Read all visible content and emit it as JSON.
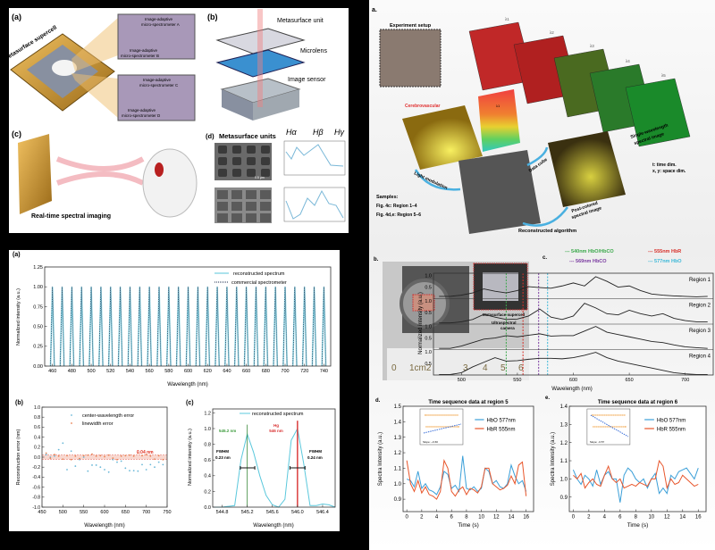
{
  "colors": {
    "cyan": "#5bc8dc",
    "orange": "#e8552a",
    "red": "#d8302a",
    "green": "#3aa84a",
    "purple": "#7a3aa0",
    "blue": "#3b9fd8"
  },
  "fig1": {
    "label_a": "(a)",
    "supercell": "Metasurface supercell",
    "insets": [
      "Image-adaptive",
      "micro-spectrometer A",
      "Image-adaptive",
      "micro-spectrometer B",
      "Image-adaptive",
      "micro-spectrometer C",
      "Image-adaptive",
      "micro-spectrometer D"
    ],
    "label_b": "(b)",
    "layer_unit": "Metasurface unit",
    "layer_lens": "Microlens",
    "layer_sensor": "Image sensor",
    "label_c": "(c)",
    "caption_c": "Real-time spectral imaging",
    "label_d": "(d)",
    "title_d": "Metasurface units",
    "h_labels": [
      "Hα",
      "Hβ",
      "Hγ"
    ],
    "scale": "0.5 μm"
  },
  "fig2": {
    "label_a": "(a)",
    "label_b": "(b)",
    "label_c": "(c)",
    "chart_data": [
      {
        "type": "line",
        "ylabel": "Normalized intensity (a.u.)",
        "xlabel": "Wavelength (nm)",
        "xlim": [
          452,
          747
        ],
        "ylim": [
          0,
          1.25
        ],
        "xticks": [
          460,
          480,
          500,
          520,
          540,
          560,
          580,
          600,
          620,
          640,
          660,
          680,
          700,
          720,
          740
        ],
        "yticks": [
          "0.00",
          "0.25",
          "0.50",
          "0.75",
          "1.00",
          "1.25"
        ],
        "legend": "top-right",
        "series": [
          {
            "name": "reconstructed spectrum",
            "style": "solid"
          },
          {
            "name": "commercial spectrometer",
            "style": "dotted"
          }
        ],
        "peak_centers": [
          460,
          470,
          480,
          490,
          500,
          510,
          520,
          530,
          540,
          550,
          560,
          570,
          580,
          590,
          600,
          610,
          620,
          630,
          640,
          650,
          660,
          670,
          680,
          690,
          700,
          710,
          720,
          730,
          740
        ],
        "peak_height": 1.0
      },
      {
        "type": "scatter",
        "ylabel": "Reconstruction error (nm)",
        "xlabel": "Wavelength (nm)",
        "xlim": [
          450,
          750
        ],
        "ylim": [
          -1,
          1
        ],
        "xticks": [
          450,
          500,
          550,
          600,
          650,
          700,
          750
        ],
        "yticks": [
          "-1.0",
          "-0.8",
          "-0.6",
          "-0.4",
          "-0.2",
          "0.0",
          "0.2",
          "0.4",
          "0.6",
          "0.8",
          "1.0"
        ],
        "x": [
          460,
          470,
          480,
          490,
          500,
          510,
          520,
          530,
          540,
          550,
          560,
          570,
          580,
          590,
          600,
          610,
          620,
          630,
          640,
          650,
          660,
          670,
          680,
          690,
          700,
          710,
          720,
          730,
          740
        ],
        "series": [
          {
            "name": "center-wavelength error",
            "values": [
              0.05,
              0,
              0.02,
              0.15,
              0.28,
              -0.25,
              0.12,
              -0.18,
              -0.05,
              0,
              -0.28,
              -0.16,
              -0.16,
              -0.2,
              -0.25,
              -0.3,
              -0.05,
              -0.1,
              -0.08,
              -0.22,
              -0.27,
              -0.27,
              -0.28,
              -0.15,
              -0.25,
              -0.15,
              -0.2,
              -0.1,
              -0.15
            ]
          },
          {
            "name": "linewidth error",
            "values": [
              0.08,
              -0.02,
              0.05,
              0.02,
              -0.04,
              0.03,
              -0.05,
              0.02,
              -0.03,
              0.03,
              0.04,
              0.06,
              0.02,
              0.03,
              0.01,
              0.04,
              -0.02,
              -0.05,
              0.02,
              0.03,
              0.04,
              0.02,
              0.08,
              0.03,
              0.05,
              0.02,
              -0.04,
              0.03,
              -0.05
            ]
          }
        ],
        "annotation": "0.04 nm",
        "band": 0.04
      },
      {
        "type": "line",
        "ylabel": "Normalized intensity (a.u.)",
        "xlabel": "Wavelength (nm)",
        "xlim": [
          544.65,
          546.6
        ],
        "ylim": [
          0,
          1.25
        ],
        "xticks": [
          "544.8",
          "545.2",
          "545.6",
          "546.0",
          "546.4"
        ],
        "yticks": [
          "0.0",
          "0.2",
          "0.4",
          "0.6",
          "0.8",
          "1.0",
          "1.2"
        ],
        "series": [
          {
            "name": "reconstructed spectrum",
            "x": [
              544.6,
              544.7,
              544.8,
              544.9,
              545.0,
              545.1,
              545.2,
              545.3,
              545.4,
              545.5,
              545.6,
              545.7,
              545.8,
              545.9,
              546.0,
              546.1,
              546.2,
              546.3,
              546.4,
              546.5,
              546.6
            ],
            "values": [
              0,
              0,
              0,
              0.01,
              0.02,
              0.6,
              0.93,
              0.7,
              0.4,
              0.15,
              0.03,
              0,
              0.1,
              0.85,
              1.0,
              0.55,
              0.02,
              0.02,
              0.04,
              0.03,
              0
            ]
          }
        ],
        "annotations": {
          "peak1": "545.2 nm",
          "hg": "Hg",
          "hg_value": "546 nm",
          "fwhm": "FWHM",
          "fwhm1": "0.23 nm",
          "fwhm2": "0.24 nm"
        }
      }
    ]
  },
  "fig3": {
    "label_a": "a.",
    "setup": "Experiment setup",
    "cerebro": "Cerebrovascular",
    "lambdas": [
      "λ1",
      "λ2",
      "λ3",
      "λ4",
      "λ5"
    ],
    "single": "Single-wavelength",
    "single2": "spectral image",
    "light_mod": "Light modulation",
    "data_cube": "Data cube",
    "post": "Post-colored",
    "post2": "spectral image",
    "recon": "Reconstructed algorithm",
    "t_dim": "t: time dim.",
    "xy_dim": "x, y: space dim.",
    "samples": "Samples:",
    "samples_1": "Fig. 4c: Region 1–4",
    "samples_2": "Fig. 4d,e: Region 5–6",
    "label_b": "b.",
    "supercell": "Metasurface supercell",
    "camera": "Ultraspectral",
    "camera2": "camera",
    "ruler": [
      "0",
      "1cm2",
      "3",
      "4",
      "5",
      "6"
    ],
    "label_c": "c.",
    "label_d": "d.",
    "label_e": "e.",
    "chart_data": [
      {
        "type": "line",
        "ylabel": "Normalized intensity (a.u.)",
        "xlabel": "Wavelength (nm)",
        "xlim": [
          475,
          725
        ],
        "xticks": [
          500,
          550,
          600,
          650,
          700
        ],
        "yticks": [
          "0.5",
          "1.0"
        ],
        "markers": [
          {
            "label": "540nm HbO/HbCO",
            "x": 540,
            "color": "#3aa84a"
          },
          {
            "label": "555nm HbR",
            "x": 555,
            "color": "#d8302a"
          },
          {
            "label": "569nm HbCO",
            "x": 569,
            "color": "#7a3aa0"
          },
          {
            "label": "577nm HbO",
            "x": 577,
            "color": "#3bb8d8"
          }
        ],
        "x": [
          480,
          490,
          500,
          510,
          520,
          530,
          540,
          550,
          560,
          570,
          580,
          590,
          600,
          610,
          620,
          630,
          640,
          650,
          660,
          670,
          680,
          690,
          700,
          710,
          720
        ],
        "series": [
          {
            "name": "Region 1",
            "values": [
              0.1,
              0.1,
              0.15,
              0.25,
              0.42,
              0.32,
              0.25,
              0.35,
              0.52,
              0.48,
              0.45,
              0.55,
              0.68,
              0.55,
              0.95,
              0.75,
              0.5,
              0.55,
              0.35,
              0.2,
              0.15,
              0.12,
              0.1,
              0.08,
              0.1
            ]
          },
          {
            "name": "Region 2",
            "values": [
              0.05,
              0.05,
              0.1,
              0.2,
              0.42,
              0.3,
              0.2,
              0.22,
              0.35,
              0.65,
              0.3,
              0.2,
              0.35,
              0.9,
              0.7,
              0.45,
              0.4,
              0.6,
              0.45,
              0.35,
              0.45,
              0.25,
              0.15,
              0.1,
              0.1
            ]
          },
          {
            "name": "Region 3",
            "values": [
              0.05,
              0.05,
              0.15,
              0.3,
              0.45,
              0.5,
              0.6,
              0.55,
              0.62,
              0.68,
              0.58,
              0.6,
              0.6,
              0.8,
              1.0,
              0.75,
              0.65,
              0.55,
              0.45,
              0.35,
              0.3,
              0.2,
              0.12,
              0.08,
              0.05
            ]
          },
          {
            "name": "Region 4",
            "values": [
              0.02,
              0.02,
              0.1,
              0.35,
              0.55,
              0.75,
              0.6,
              0.62,
              0.68,
              0.72,
              0.72,
              0.7,
              0.75,
              0.85,
              0.98,
              0.75,
              0.6,
              0.5,
              0.4,
              0.3,
              0.2,
              0.1,
              0.05,
              0.02,
              0.02
            ]
          }
        ]
      },
      {
        "type": "line",
        "title": "Time sequence data at region 5",
        "ylabel": "Spectra Intensity (a.u.)",
        "xlabel": "Time (s)",
        "xlim": [
          -0.5,
          17
        ],
        "ylim": [
          0.82,
          1.5
        ],
        "xticks": [
          0,
          2,
          4,
          6,
          8,
          10,
          12,
          14,
          16
        ],
        "yticks": [
          "0.9",
          "1.0",
          "1.1",
          "1.2",
          "1.3",
          "1.4",
          "1.5"
        ],
        "inset_slope": "Slope: ~0.60",
        "x_step": 0.5,
        "series": [
          {
            "name": "HbO 577nm",
            "color": "#3b9fd8",
            "values": [
              1.03,
              1.02,
              0.98,
              1.08,
              0.97,
              1.0,
              0.96,
              0.95,
              0.93,
              0.98,
              1.08,
              1.06,
              0.97,
              0.99,
              0.95,
              1.18,
              0.97,
              0.96,
              0.98,
              0.95,
              0.97,
              1.1,
              1.08,
              1.0,
              1.02,
              0.98,
              0.97,
              1.0,
              1.12,
              1.05,
              1.0,
              1.02,
              0.95
            ]
          },
          {
            "name": "HbR 555nm",
            "color": "#e8552a",
            "values": [
              1.15,
              1.0,
              0.95,
              1.02,
              0.94,
              0.98,
              0.93,
              0.92,
              0.9,
              0.95,
              1.15,
              1.1,
              0.95,
              0.92,
              0.96,
              0.98,
              0.93,
              0.97,
              0.96,
              0.94,
              0.98,
              1.1,
              1.1,
              1.0,
              0.98,
              0.96,
              0.97,
              0.99,
              1.05,
              1.0,
              1.12,
              1.14,
              0.92
            ]
          }
        ]
      },
      {
        "type": "line",
        "title": "Time sequence data at region 6",
        "ylabel": "Spectra Intensity (a.u.)",
        "xlabel": "Time (s)",
        "xlim": [
          -0.5,
          17
        ],
        "ylim": [
          0.82,
          1.4
        ],
        "xticks": [
          0,
          2,
          4,
          6,
          8,
          10,
          12,
          14,
          16
        ],
        "yticks": [
          "0.9",
          "1.0",
          "1.1",
          "1.2",
          "1.3",
          "1.4"
        ],
        "inset_slope": "Slope: -0.57",
        "x_step": 0.5,
        "series": [
          {
            "name": "HbO 577nm",
            "color": "#3b9fd8",
            "values": [
              1.05,
              1.0,
              0.97,
              1.02,
              1.0,
              0.96,
              1.05,
              0.97,
              1.02,
              1.04,
              1.0,
              1.0,
              0.87,
              1.02,
              1.06,
              1.04,
              1.0,
              0.98,
              1.0,
              0.95,
              1.0,
              1.03,
              0.92,
              0.95,
              0.92,
              1.02,
              1.0,
              1.04,
              1.05,
              1.06,
              1.03,
              1.0,
              1.06
            ]
          },
          {
            "name": "HbR 555nm",
            "color": "#e8552a",
            "values": [
              1.02,
              1.0,
              1.03,
              0.95,
              0.98,
              1.0,
              0.97,
              0.96,
              1.02,
              1.07,
              1.0,
              0.98,
              1.0,
              0.95,
              0.96,
              0.97,
              0.96,
              0.98,
              0.97,
              0.96,
              1.0,
              1.0,
              1.1,
              1.07,
              0.95,
              1.0,
              0.97,
              0.98,
              1.02,
              1.0,
              0.98,
              0.96,
              0.97
            ]
          }
        ]
      }
    ]
  }
}
